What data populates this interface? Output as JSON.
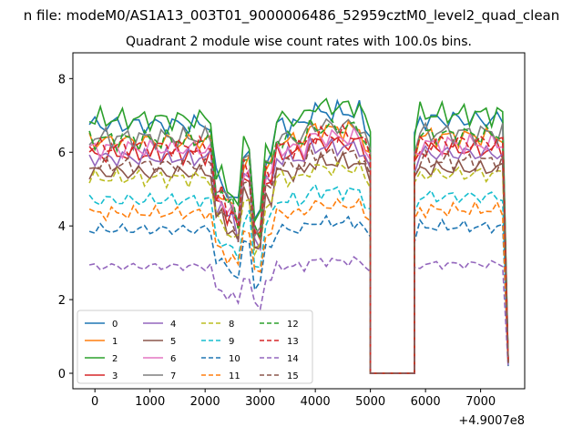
{
  "suptitle": "n file: modeM0/AS1A13_003T01_9000006486_52959cztM0_level2_quad_clean",
  "chart_data": {
    "type": "line",
    "title": "Quadrant 2 module wise count rates with 100.0s bins.",
    "xlabel": "",
    "ylabel": "",
    "x_offset_label": "+4.9007e8",
    "xlim": [
      -400,
      7800
    ],
    "ylim": [
      -0.42,
      8.7
    ],
    "xticks": [
      0,
      1000,
      2000,
      3000,
      4000,
      5000,
      6000,
      7000
    ],
    "yticks": [
      0,
      2,
      4,
      6,
      8
    ],
    "grid": false,
    "legend_position": "lower-left",
    "colors": [
      "#1f77b4",
      "#ff7f0e",
      "#2ca02c",
      "#d62728",
      "#9467bd",
      "#8c564b",
      "#e377c2",
      "#7f7f7f",
      "#bcbd22",
      "#17becf"
    ],
    "gap": {
      "start": 5000,
      "end": 5800,
      "x": [
        5000,
        5800
      ]
    },
    "series": [
      {
        "name": "0",
        "base": 6.75,
        "style": "solid"
      },
      {
        "name": "1",
        "base": 6.3,
        "style": "solid"
      },
      {
        "name": "2",
        "base": 6.9,
        "style": "solid"
      },
      {
        "name": "3",
        "base": 5.95,
        "style": "solid"
      },
      {
        "name": "4",
        "base": 5.85,
        "style": "solid"
      },
      {
        "name": "5",
        "base": 5.45,
        "style": "solid"
      },
      {
        "name": "6",
        "base": 6.1,
        "style": "solid"
      },
      {
        "name": "7",
        "base": 6.4,
        "style": "solid"
      },
      {
        "name": "8",
        "base": 5.3,
        "style": "dashed"
      },
      {
        "name": "9",
        "base": 4.7,
        "style": "dashed"
      },
      {
        "name": "10",
        "base": 3.9,
        "style": "dashed"
      },
      {
        "name": "11",
        "base": 4.35,
        "style": "dashed"
      },
      {
        "name": "12",
        "base": 6.35,
        "style": "dashed"
      },
      {
        "name": "13",
        "base": 6.15,
        "style": "dashed"
      },
      {
        "name": "14",
        "base": 2.9,
        "style": "dashed"
      },
      {
        "name": "15",
        "base": 5.65,
        "style": "dashed"
      }
    ]
  }
}
